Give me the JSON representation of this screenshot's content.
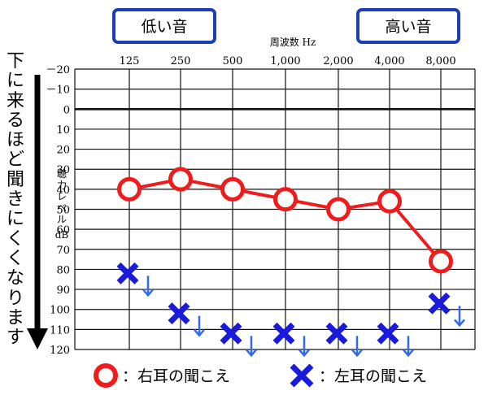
{
  "side_label": "下に来るほど聞きにくくなります",
  "badges": {
    "low": "低い音",
    "high": "高い音"
  },
  "legend": {
    "right": "：右耳の聞こえ",
    "left": "：左耳の聞こえ"
  },
  "colors": {
    "right": "#ee1c1c",
    "left": "#1a1adb",
    "arrow": "#2f6bea",
    "badge_border": "#1a3fb0",
    "grid": "#111111"
  },
  "chart_data": {
    "type": "scatter",
    "title": "",
    "xlabel": "周波数 Hz",
    "ylabel_lines": [
      "聴",
      "力",
      "レ",
      "ベ",
      "ル",
      "dB"
    ],
    "x_tick_labels": [
      "125",
      "250",
      "500",
      "1,000",
      "2,000",
      "4,000",
      "8,000"
    ],
    "y_ticks": [
      -20,
      -10,
      0,
      10,
      20,
      30,
      40,
      50,
      60,
      70,
      80,
      90,
      100,
      110,
      120
    ],
    "y_tick_labels": [
      "－20",
      "－10",
      "0",
      "10",
      "20",
      "30",
      "40",
      "50",
      "60",
      "70",
      "80",
      "90",
      "100",
      "110",
      "120"
    ],
    "ylim": [
      -20,
      120
    ],
    "y_inverted": true,
    "grid": true,
    "series": [
      {
        "name": "右耳の聞こえ",
        "marker": "circle",
        "connected": true,
        "x": [
          "125",
          "250",
          "500",
          "1,000",
          "2,000",
          "4,000",
          "8,000"
        ],
        "values": [
          40,
          35,
          40,
          45,
          50,
          46,
          76
        ]
      },
      {
        "name": "左耳の聞こえ",
        "marker": "cross",
        "connected": false,
        "scale_out": true,
        "x": [
          "125",
          "250",
          "500",
          "1,000",
          "2,000",
          "4,000",
          "8,000"
        ],
        "values": [
          82,
          102,
          112,
          112,
          112,
          112,
          97
        ]
      }
    ]
  }
}
